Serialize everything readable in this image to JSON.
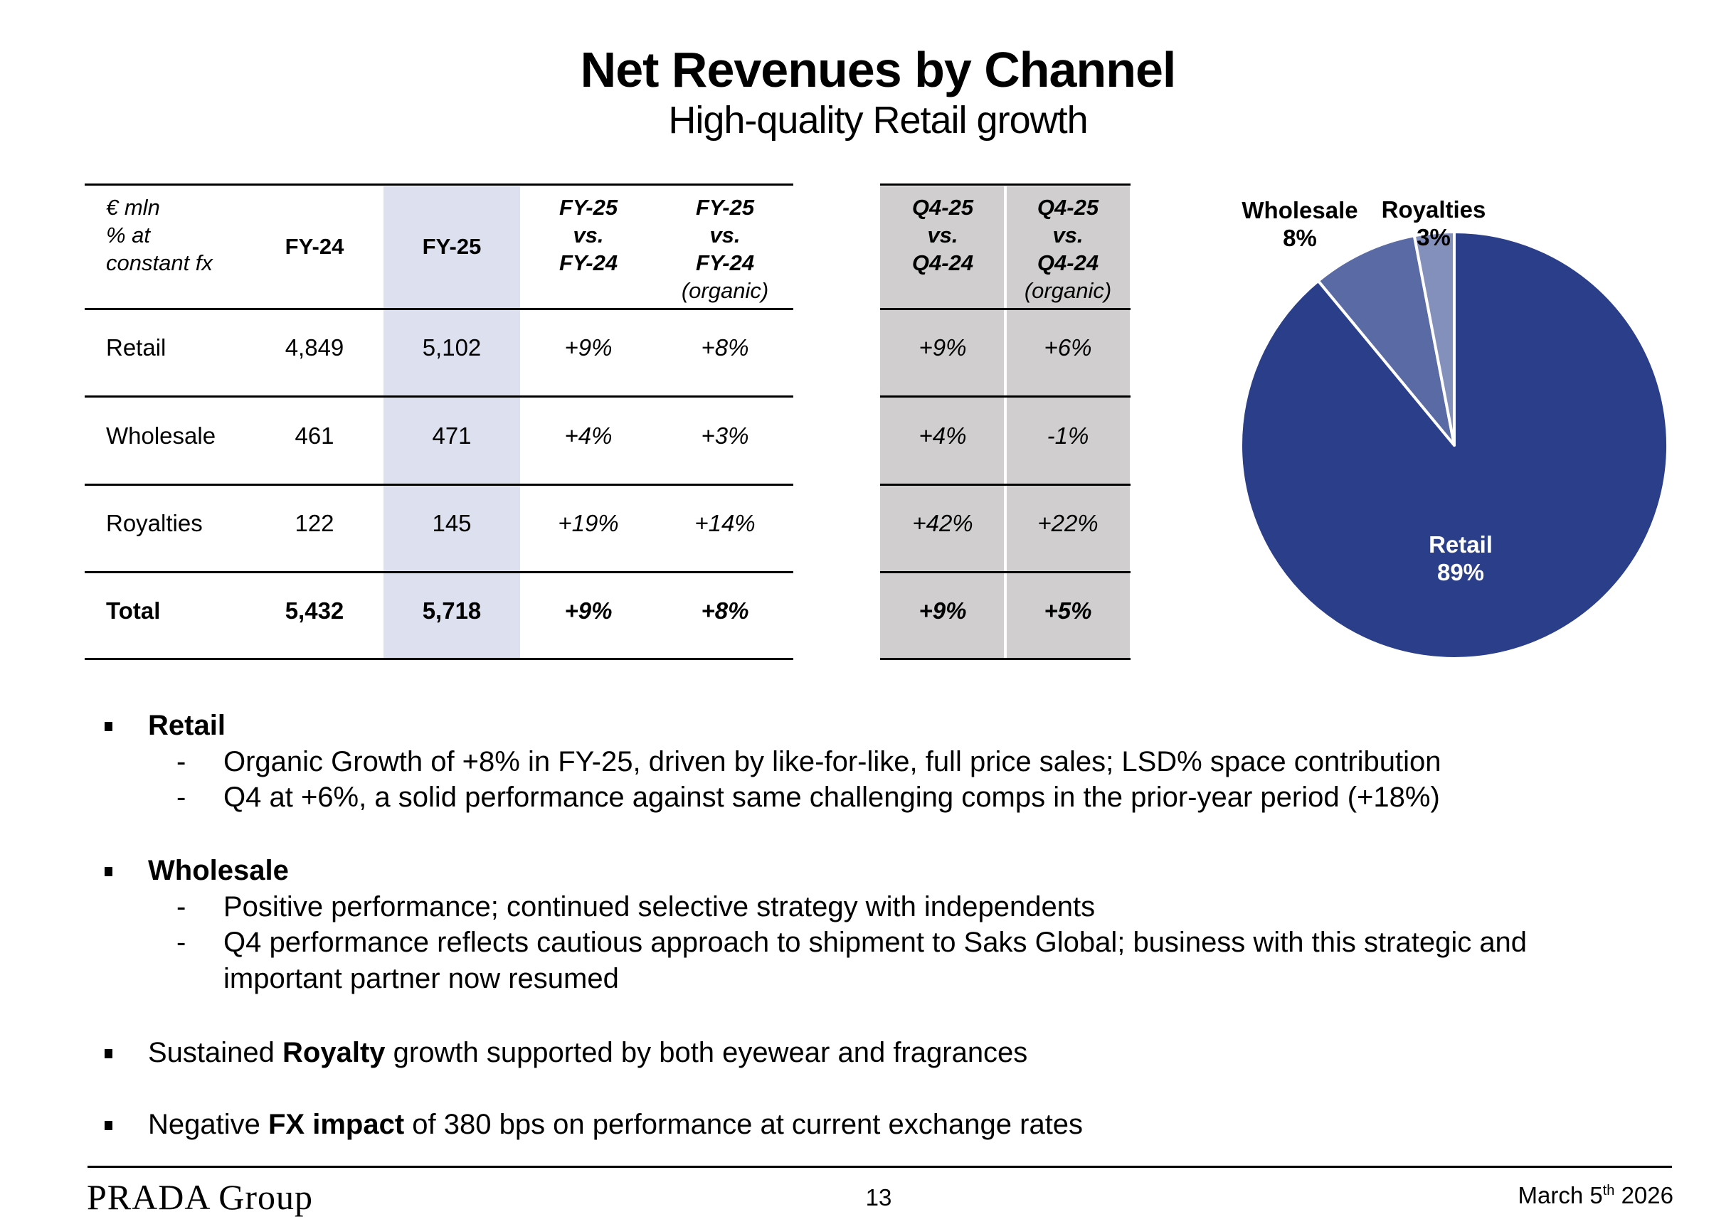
{
  "header": {
    "title": "Net Revenues by Channel",
    "subtitle": "High-quality Retail growth"
  },
  "table": {
    "unit_label": [
      "€ mln",
      "% at",
      "constant fx"
    ],
    "columns": [
      {
        "lines": [
          "FY-24"
        ]
      },
      {
        "lines": [
          "FY-25"
        ]
      },
      {
        "lines": [
          "FY-25",
          "vs.",
          "FY-24"
        ]
      },
      {
        "lines": [
          "FY-25",
          "vs.",
          "FY-24"
        ],
        "note": "(organic)"
      },
      {
        "lines": [
          "Q4-25",
          "vs.",
          "Q4-24"
        ]
      },
      {
        "lines": [
          "Q4-25",
          "vs.",
          "Q4-24"
        ],
        "note": "(organic)"
      }
    ],
    "rows": [
      {
        "label": "Retail",
        "values": [
          "4,849",
          "5,102",
          "+9%",
          "+8%",
          "+9%",
          "+6%"
        ],
        "bold": false
      },
      {
        "label": "Wholesale",
        "values": [
          "461",
          "471",
          "+4%",
          "+3%",
          "+4%",
          "-1%"
        ],
        "bold": false
      },
      {
        "label": "Royalties",
        "values": [
          "122",
          "145",
          "+19%",
          "+14%",
          "+42%",
          "+22%"
        ],
        "bold": false
      },
      {
        "label": "Total",
        "values": [
          "5,432",
          "5,718",
          "+9%",
          "+8%",
          "+9%",
          "+5%"
        ],
        "bold": true
      }
    ],
    "colors": {
      "fy25_shade": "#DDE0EE",
      "q4_shade": "#D0CECE"
    }
  },
  "chart_data": {
    "type": "pie",
    "title": "",
    "slices": [
      {
        "label": "Retail",
        "value": 89,
        "display": "89%",
        "color": "#2A3E89"
      },
      {
        "label": "Wholesale",
        "value": 8,
        "display": "8%",
        "color": "#5A6AA4"
      },
      {
        "label": "Royalties",
        "value": 3,
        "display": "3%",
        "color": "#8490BC"
      }
    ],
    "start_angle": "12 o'clock",
    "direction": "clockwise",
    "legend": "none (direct labels)"
  },
  "bullets": [
    {
      "segments": [
        {
          "text": "Retail",
          "bold": true
        }
      ],
      "subs": [
        "Organic Growth of +8% in FY-25, driven by like-for-like, full price sales; LSD% space contribution",
        "Q4 at +6%, a solid performance against same challenging comps in the prior-year period (+18%)"
      ]
    },
    {
      "segments": [
        {
          "text": "Wholesale",
          "bold": true
        }
      ],
      "subs": [
        "Positive performance; continued selective strategy with independents",
        "Q4 performance reflects cautious approach to shipment to Saks Global; business with this strategic and",
        "important partner now resumed"
      ]
    },
    {
      "segments": [
        {
          "text": "Sustained ",
          "bold": false
        },
        {
          "text": "Royalty",
          "bold": true
        },
        {
          "text": " growth supported by both eyewear and fragrances",
          "bold": false
        }
      ]
    },
    {
      "segments": [
        {
          "text": "Negative ",
          "bold": false
        },
        {
          "text": "FX impact",
          "bold": true
        },
        {
          "text": " of 380 bps on performance at current exchange rates",
          "bold": false
        }
      ]
    }
  ],
  "footer": {
    "logo": "PRADA Group",
    "page_number": "13",
    "date_prefix": "March 5",
    "date_suffix": "th",
    "date_year": " 2026"
  }
}
